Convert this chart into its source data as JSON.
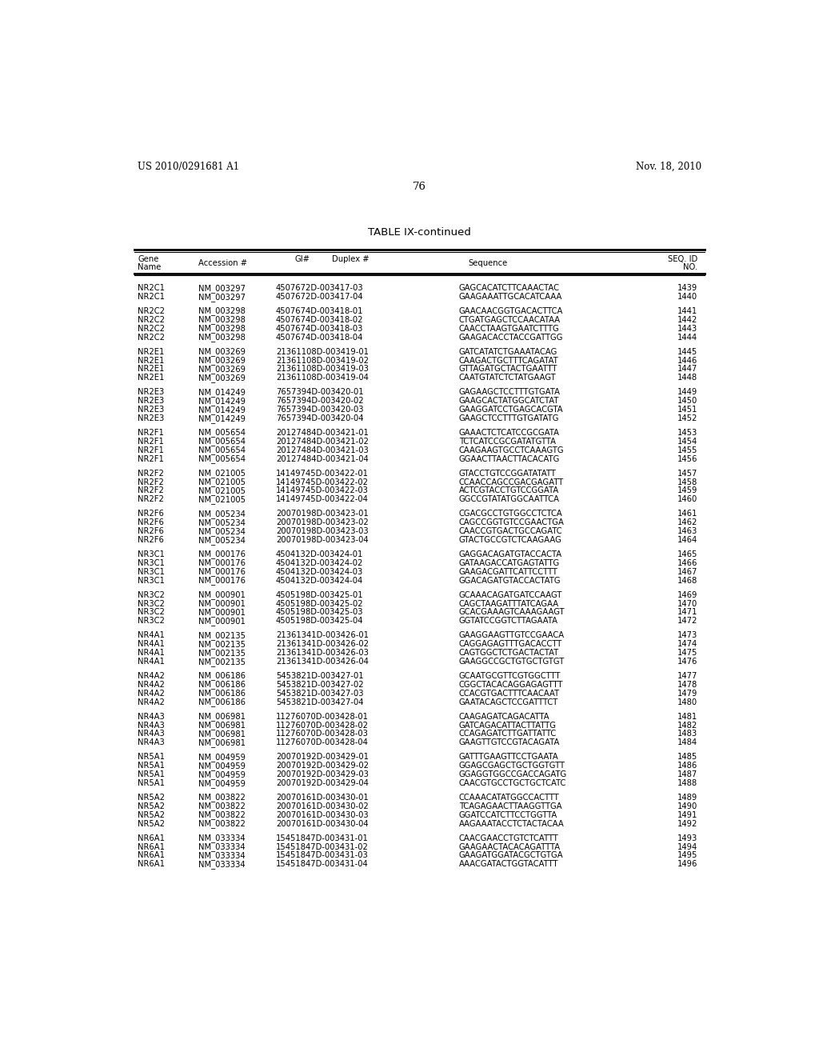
{
  "header_left": "US 2010/0291681 A1",
  "header_right": "Nov. 18, 2010",
  "page_number": "76",
  "table_title": "TABLE IX-continued",
  "rows": [
    [
      "NR2C1",
      "NM_003297",
      "4507672D-003417-03",
      "GAGCACATCTTCAAACTAC",
      "1439"
    ],
    [
      "NR2C1",
      "NM_003297",
      "4507672D-003417-04",
      "GAAGAAATTGCACATCAAA",
      "1440"
    ],
    [
      "",
      "",
      "",
      "",
      ""
    ],
    [
      "NR2C2",
      "NM_003298",
      "4507674D-003418-01",
      "GAACAACGGTGACACTTCA",
      "1441"
    ],
    [
      "NR2C2",
      "NM_003298",
      "4507674D-003418-02",
      "CTGATGAGCTCCAACATAA",
      "1442"
    ],
    [
      "NR2C2",
      "NM_003298",
      "4507674D-003418-03",
      "CAACCTAAGTGAATCTTTG",
      "1443"
    ],
    [
      "NR2C2",
      "NM_003298",
      "4507674D-003418-04",
      "GAAGACACCTACCGATTGG",
      "1444"
    ],
    [
      "",
      "",
      "",
      "",
      ""
    ],
    [
      "NR2E1",
      "NM_003269",
      "21361108D-003419-01",
      "GATCATATCTGAAATACAG",
      "1445"
    ],
    [
      "NR2E1",
      "NM_003269",
      "21361108D-003419-02",
      "CAAGACTGCTTTCAGATAT",
      "1446"
    ],
    [
      "NR2E1",
      "NM_003269",
      "21361108D-003419-03",
      "GTTAGATGCTACTGAATTT",
      "1447"
    ],
    [
      "NR2E1",
      "NM_003269",
      "21361108D-003419-04",
      "CAATGTATCTCTATGAAGT",
      "1448"
    ],
    [
      "",
      "",
      "",
      "",
      ""
    ],
    [
      "NR2E3",
      "NM_014249",
      "7657394D-003420-01",
      "GAGAAGCTCCTTTGTGATA",
      "1449"
    ],
    [
      "NR2E3",
      "NM_014249",
      "7657394D-003420-02",
      "GAAGCACTATGGCATCTAT",
      "1450"
    ],
    [
      "NR2E3",
      "NM_014249",
      "7657394D-003420-03",
      "GAAGGATCCTGAGCACGTA",
      "1451"
    ],
    [
      "NR2E3",
      "NM_014249",
      "7657394D-003420-04",
      "GAAGCTCCTTTGTGATATG",
      "1452"
    ],
    [
      "",
      "",
      "",
      "",
      ""
    ],
    [
      "NR2F1",
      "NM_005654",
      "20127484D-003421-01",
      "GAAACTCTCATCCGCGATA",
      "1453"
    ],
    [
      "NR2F1",
      "NM_005654",
      "20127484D-003421-02",
      "TCTCATCCGCGATATGTTA",
      "1454"
    ],
    [
      "NR2F1",
      "NM_005654",
      "20127484D-003421-03",
      "CAAGAAGTGCCTCAAAGTG",
      "1455"
    ],
    [
      "NR2F1",
      "NM_005654",
      "20127484D-003421-04",
      "GGAACTTAACTTACACATG",
      "1456"
    ],
    [
      "",
      "",
      "",
      "",
      ""
    ],
    [
      "NR2F2",
      "NM_021005",
      "14149745D-003422-01",
      "GTACCTGTCCGGATATATT",
      "1457"
    ],
    [
      "NR2F2",
      "NM_021005",
      "14149745D-003422-02",
      "CCAACCAGCCGACGAGATT",
      "1458"
    ],
    [
      "NR2F2",
      "NM_021005",
      "14149745D-003422-03",
      "ACTCGTACCTGTCCGGATA",
      "1459"
    ],
    [
      "NR2F2",
      "NM_021005",
      "14149745D-003422-04",
      "GGCCGTATATGGCAATTCA",
      "1460"
    ],
    [
      "",
      "",
      "",
      "",
      ""
    ],
    [
      "NR2F6",
      "NM_005234",
      "20070198D-003423-01",
      "CGACGCCTGTGGCCTCTCA",
      "1461"
    ],
    [
      "NR2F6",
      "NM_005234",
      "20070198D-003423-02",
      "CAGCCGGTGTCCGAACTGA",
      "1462"
    ],
    [
      "NR2F6",
      "NM_005234",
      "20070198D-003423-03",
      "CAACCGTGACTGCCAGATC",
      "1463"
    ],
    [
      "NR2F6",
      "NM_005234",
      "20070198D-003423-04",
      "GTACTGCCGTCTCAAGAAG",
      "1464"
    ],
    [
      "",
      "",
      "",
      "",
      ""
    ],
    [
      "NR3C1",
      "NM_000176",
      "4504132D-003424-01",
      "GAGGACAGATGTACCACTA",
      "1465"
    ],
    [
      "NR3C1",
      "NM_000176",
      "4504132D-003424-02",
      "GATAAGACCATGAGTATTG",
      "1466"
    ],
    [
      "NR3C1",
      "NM_000176",
      "4504132D-003424-03",
      "GAAGACGATTCATTCCTTT",
      "1467"
    ],
    [
      "NR3C1",
      "NM_000176",
      "4504132D-003424-04",
      "GGACAGATGTACCACTATG",
      "1468"
    ],
    [
      "",
      "",
      "",
      "",
      ""
    ],
    [
      "NR3C2",
      "NM_000901",
      "4505198D-003425-01",
      "GCAAACAGATGATCCAAGT",
      "1469"
    ],
    [
      "NR3C2",
      "NM_000901",
      "4505198D-003425-02",
      "CAGCTAAGATTTATCAGAA",
      "1470"
    ],
    [
      "NR3C2",
      "NM_000901",
      "4505198D-003425-03",
      "GCACGAAAGTCAAAGAAGT",
      "1471"
    ],
    [
      "NR3C2",
      "NM_000901",
      "4505198D-003425-04",
      "GGTATCCGGTCTTAGAATA",
      "1472"
    ],
    [
      "",
      "",
      "",
      "",
      ""
    ],
    [
      "NR4A1",
      "NM_002135",
      "21361341D-003426-01",
      "GAAGGAAGTTGTCCGAACA",
      "1473"
    ],
    [
      "NR4A1",
      "NM_002135",
      "21361341D-003426-02",
      "CAGGAGAGTTTGACACCTT",
      "1474"
    ],
    [
      "NR4A1",
      "NM_002135",
      "21361341D-003426-03",
      "CAGTGGCTCTGACTACTAT",
      "1475"
    ],
    [
      "NR4A1",
      "NM_002135",
      "21361341D-003426-04",
      "GAAGGCCGCTGTGCTGTGT",
      "1476"
    ],
    [
      "",
      "",
      "",
      "",
      ""
    ],
    [
      "NR4A2",
      "NM_006186",
      "5453821D-003427-01",
      "GCAATGCGTTCGTGGCTTT",
      "1477"
    ],
    [
      "NR4A2",
      "NM_006186",
      "5453821D-003427-02",
      "CGGCTACACAGGAGAGTTT",
      "1478"
    ],
    [
      "NR4A2",
      "NM_006186",
      "5453821D-003427-03",
      "CCACGTGACTTTCAACAAT",
      "1479"
    ],
    [
      "NR4A2",
      "NM_006186",
      "5453821D-003427-04",
      "GAATACAGCTCCGATTTCT",
      "1480"
    ],
    [
      "",
      "",
      "",
      "",
      ""
    ],
    [
      "NR4A3",
      "NM_006981",
      "11276070D-003428-01",
      "CAAGAGATCAGACATTA",
      "1481"
    ],
    [
      "NR4A3",
      "NM_006981",
      "11276070D-003428-02",
      "GATCAGACATTACTTATTG",
      "1482"
    ],
    [
      "NR4A3",
      "NM_006981",
      "11276070D-003428-03",
      "CCAGAGATCTTGATTATTC",
      "1483"
    ],
    [
      "NR4A3",
      "NM_006981",
      "11276070D-003428-04",
      "GAAGTTGTCCGTACAGATA",
      "1484"
    ],
    [
      "",
      "",
      "",
      "",
      ""
    ],
    [
      "NR5A1",
      "NM_004959",
      "20070192D-003429-01",
      "GATTTGAAGTTCCTGAATA",
      "1485"
    ],
    [
      "NR5A1",
      "NM_004959",
      "20070192D-003429-02",
      "GGAGCGAGCTGCTGGTGTT",
      "1486"
    ],
    [
      "NR5A1",
      "NM_004959",
      "20070192D-003429-03",
      "GGAGGTGGCCGACCAGATG",
      "1487"
    ],
    [
      "NR5A1",
      "NM_004959",
      "20070192D-003429-04",
      "CAACGTGCCTGCTGCTCATC",
      "1488"
    ],
    [
      "",
      "",
      "",
      "",
      ""
    ],
    [
      "NR5A2",
      "NM_003822",
      "20070161D-003430-01",
      "CCAAACATATGGCCACTTT",
      "1489"
    ],
    [
      "NR5A2",
      "NM_003822",
      "20070161D-003430-02",
      "TCAGAGAACTTAAGGTTGA",
      "1490"
    ],
    [
      "NR5A2",
      "NM_003822",
      "20070161D-003430-03",
      "GGATCCATCTTCCTGGTTA",
      "1491"
    ],
    [
      "NR5A2",
      "NM_003822",
      "20070161D-003430-04",
      "AAGAAATACCTCTACTACAA",
      "1492"
    ],
    [
      "",
      "",
      "",
      "",
      ""
    ],
    [
      "NR6A1",
      "NM_033334",
      "15451847D-003431-01",
      "CAACGAACCTGTCTCATTT",
      "1493"
    ],
    [
      "NR6A1",
      "NM_033334",
      "15451847D-003431-02",
      "GAAGAACTACACAGATTTA",
      "1494"
    ],
    [
      "NR6A1",
      "NM_033334",
      "15451847D-003431-03",
      "GAAGATGGATACGCTGTGA",
      "1495"
    ],
    [
      "NR6A1",
      "NM_033334",
      "15451847D-003431-04",
      "AAACGATACTGGTACATTT",
      "1496"
    ]
  ],
  "bg_color": "#ffffff",
  "text_color": "#000000",
  "font_size": 7.2,
  "header_font_size": 8.5,
  "title_font_size": 9.5
}
